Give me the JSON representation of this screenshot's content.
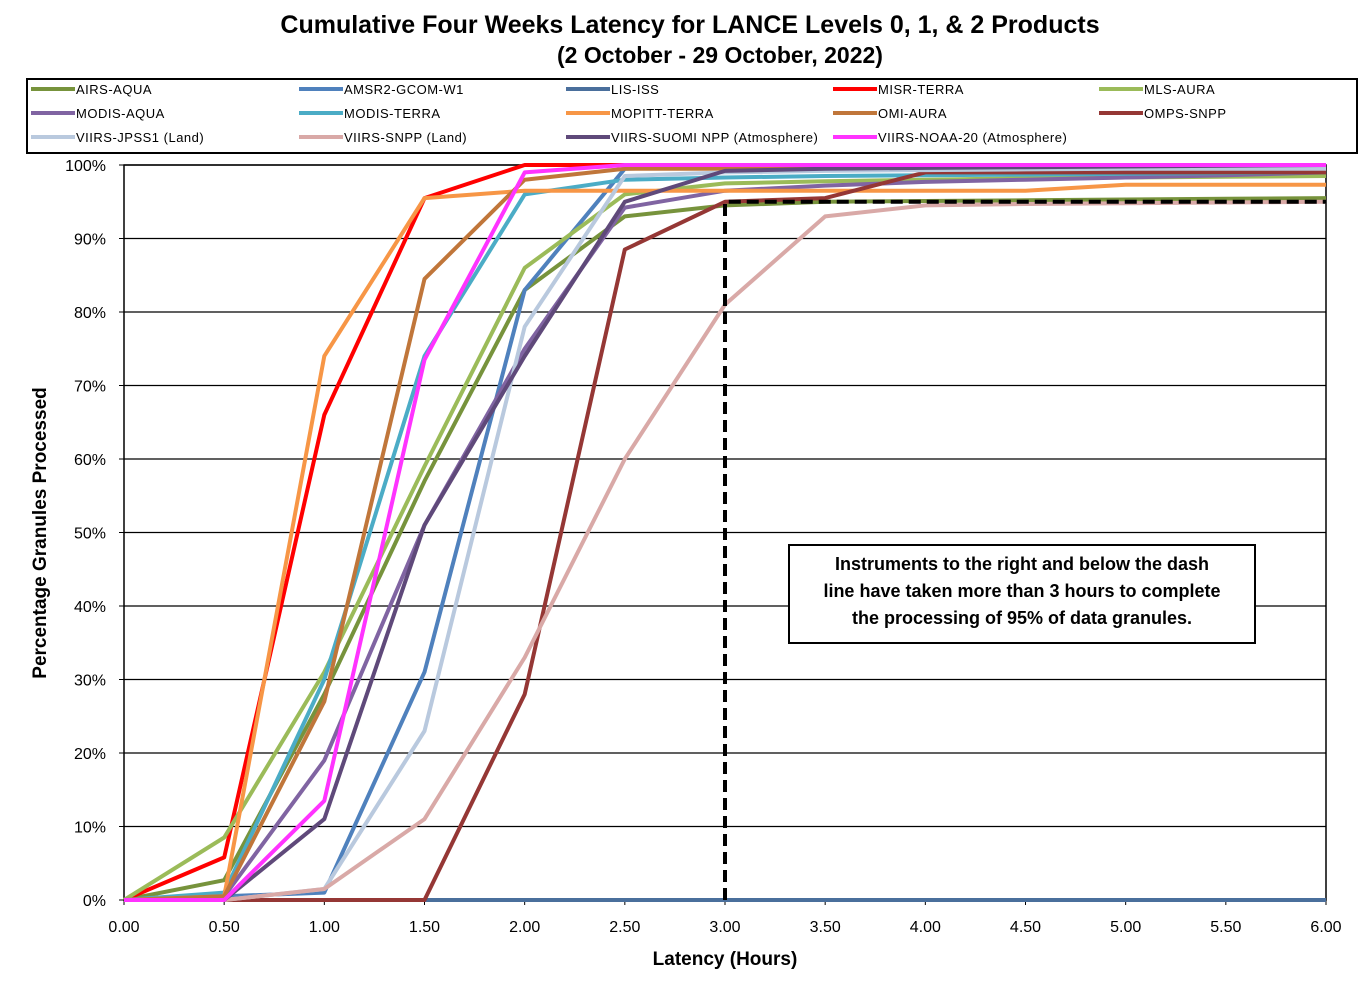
{
  "chart_data": {
    "type": "line",
    "title": "Cumulative Four Weeks Latency  for LANCE Levels 0, 1, & 2 Products",
    "subtitle": "(2  October   -  29  October,  2022)",
    "xlabel": "Latency (Hours)",
    "ylabel": "Percentage Granules Processed",
    "xlim": [
      0,
      6
    ],
    "ylim": [
      0,
      100
    ],
    "x_ticks": [
      "0.00",
      "0.50",
      "1.00",
      "1.50",
      "2.00",
      "2.50",
      "3.00",
      "3.50",
      "4.00",
      "4.50",
      "5.00",
      "5.50",
      "6.00"
    ],
    "y_ticks": [
      "0%",
      "10%",
      "20%",
      "30%",
      "40%",
      "50%",
      "60%",
      "70%",
      "80%",
      "90%",
      "100%"
    ],
    "grid": "horizontal",
    "legend_position": "top",
    "x": [
      0,
      0.5,
      1.0,
      1.5,
      2.0,
      2.5,
      3.0,
      3.5,
      4.0,
      4.5,
      5.0,
      5.5,
      6.0
    ],
    "series": [
      {
        "name": "AIRS-AQUA",
        "color": "#77933C",
        "values": [
          0,
          2.7,
          28,
          57,
          83,
          93,
          94.5,
          95,
          95.1,
          95.2,
          95.3,
          95.4,
          95.5
        ]
      },
      {
        "name": "AMSR2-GCOM-W1",
        "color": "#4F81BD",
        "values": [
          0,
          0.5,
          1,
          31,
          83,
          99.5,
          99.7,
          99.8,
          99.8,
          99.8,
          99.8,
          99.8,
          99.8
        ]
      },
      {
        "name": "LIS-ISS",
        "color": "#4A6F9C",
        "values": [
          0,
          0,
          0,
          0,
          0,
          0,
          0,
          0,
          0,
          0,
          0,
          0,
          0
        ]
      },
      {
        "name": "MISR-TERRA",
        "color": "#FF0000",
        "values": [
          0,
          5.8,
          66,
          95.5,
          100,
          100,
          100,
          100,
          100,
          100,
          100,
          100,
          100
        ]
      },
      {
        "name": "MLS-AURA",
        "color": "#9BBB59",
        "values": [
          0,
          8.5,
          31,
          59,
          86,
          96,
          97.5,
          97.8,
          98,
          98.2,
          98.3,
          98.4,
          98.5
        ]
      },
      {
        "name": "MODIS-AQUA",
        "color": "#8064A2",
        "values": [
          0,
          0.5,
          19,
          51,
          75,
          94.2,
          96.5,
          97.2,
          97.7,
          98,
          98.3,
          98.6,
          99
        ]
      },
      {
        "name": "MODIS-TERRA",
        "color": "#4BACC6",
        "values": [
          0,
          1,
          30,
          74,
          96,
          98,
          98.3,
          98.5,
          98.6,
          98.7,
          98.8,
          98.9,
          99
        ]
      },
      {
        "name": "MOPITT-TERRA",
        "color": "#F79646",
        "values": [
          0,
          0.5,
          74,
          95.5,
          96.5,
          96.5,
          96.5,
          96.5,
          96.5,
          96.5,
          97.3,
          97.3,
          97.3
        ]
      },
      {
        "name": "OMI-AURA",
        "color": "#C0763A",
        "values": [
          0,
          0.5,
          27,
          84.5,
          98,
          99.5,
          99.5,
          99.5,
          99.5,
          99.5,
          99.5,
          99.5,
          99.5
        ]
      },
      {
        "name": "OMPS-SNPP",
        "color": "#953735",
        "values": [
          0,
          0,
          0,
          0,
          28,
          88.5,
          95,
          95.5,
          99,
          99,
          99,
          99,
          99
        ]
      },
      {
        "name": "VIIRS-JPSS1 (Land)",
        "color": "#B9C9DE",
        "values": [
          0,
          0,
          1.5,
          23,
          78,
          98.5,
          99,
          99.2,
          99.3,
          99.4,
          99.5,
          99.5,
          99.5
        ]
      },
      {
        "name": "VIIRS-SNPP (Land)",
        "color": "#D9A9A7",
        "values": [
          0,
          0,
          1.5,
          11,
          33,
          60,
          81,
          93,
          94.5,
          94.7,
          94.8,
          94.9,
          95
        ]
      },
      {
        "name": "VIIRS-SUOMI NPP (Atmosphere)",
        "color": "#5F497A",
        "values": [
          0,
          0,
          11,
          51,
          74,
          95,
          99.2,
          99.5,
          99.6,
          99.7,
          99.8,
          99.9,
          100
        ]
      },
      {
        "name": "VIIRS-NOAA-20 (Atmosphere)",
        "color": "#FF33FF",
        "values": [
          0,
          0,
          13.5,
          73.5,
          99,
          100,
          100,
          100,
          100,
          100,
          100,
          100,
          100
        ]
      }
    ],
    "threshold": {
      "x": 3.0,
      "y": 95,
      "style": "dashed"
    },
    "annotation": [
      "Instruments to the right and below the dash",
      "line have taken more than 3 hours to complete",
      "the processing of 95% of data granules."
    ]
  }
}
